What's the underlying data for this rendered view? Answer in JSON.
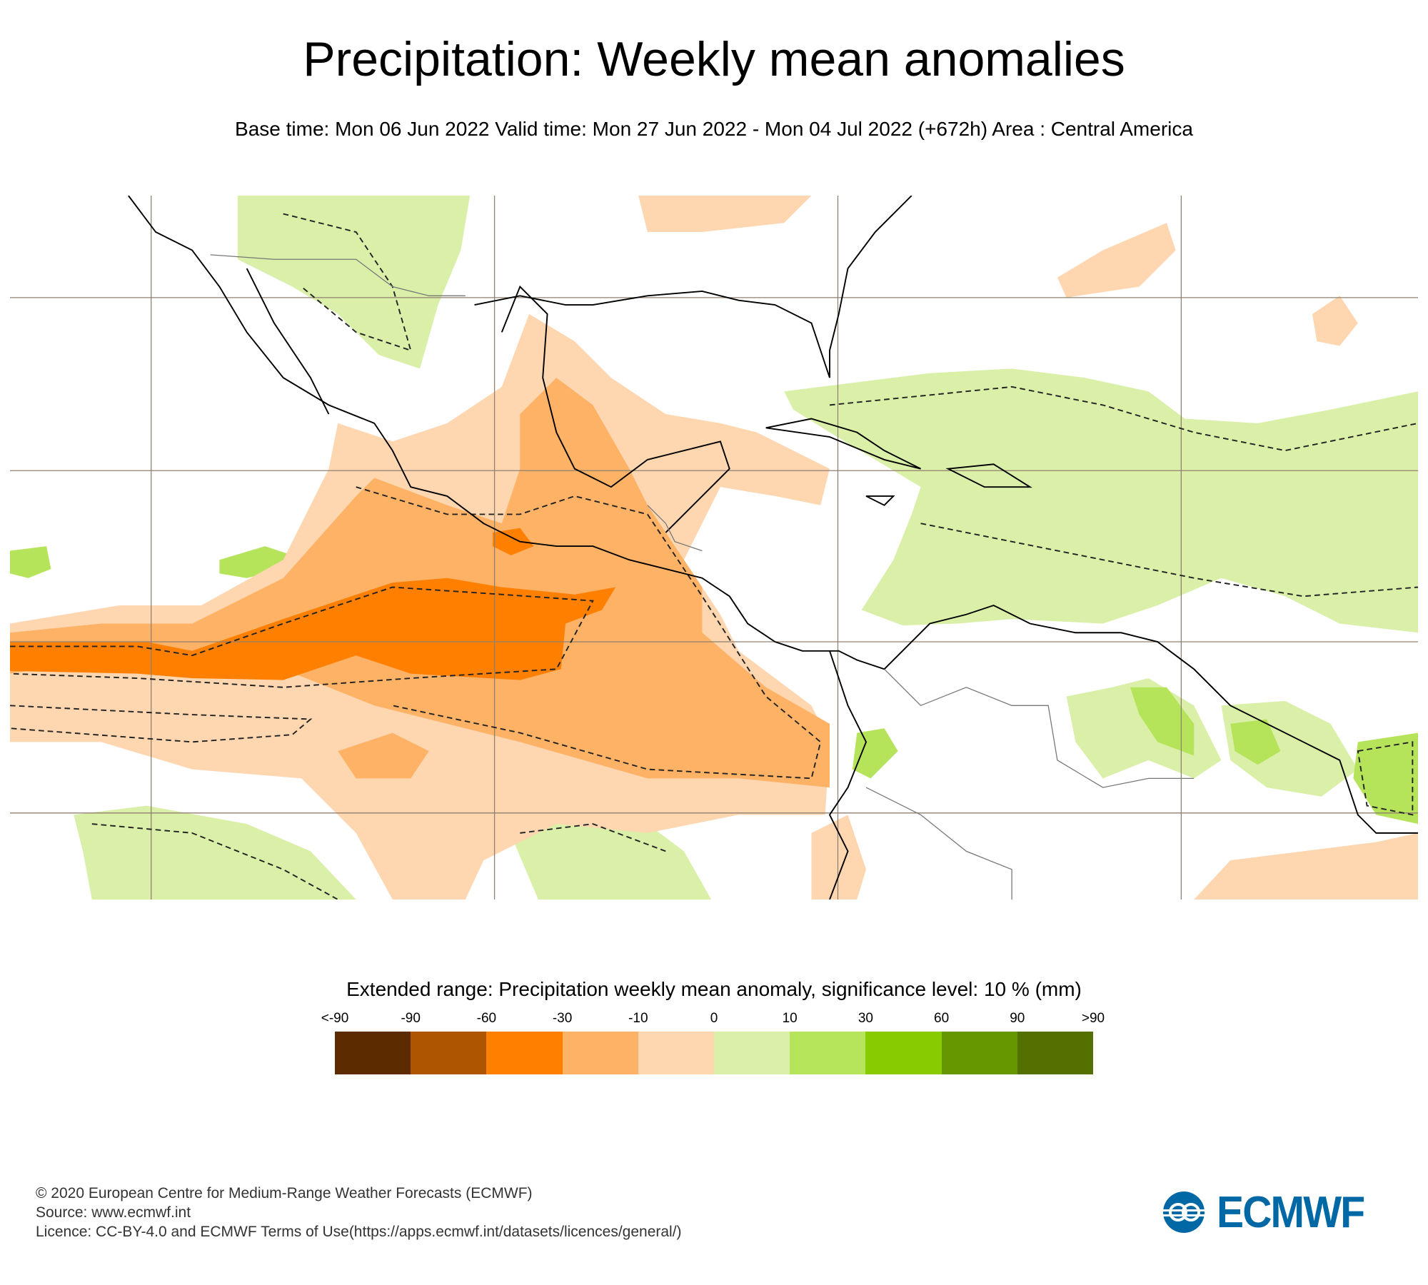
{
  "header": {
    "title": "Precipitation: Weekly mean anomalies",
    "subtitle": "Base time: Mon 06 Jun 2022 Valid time: Mon 27 Jun 2022 - Mon 04 Jul 2022 (+672h) Area : Central America"
  },
  "map": {
    "area": "Central America",
    "variable": "Precipitation weekly mean anomaly",
    "units": "mm",
    "fill_colors": {
      "strong_dry": "#ff7f00",
      "moderate_dry": "#feb266",
      "weak_dry": "#fed6b0",
      "weak_wet": "#daf0a8",
      "moderate_wet": "#b5e45a",
      "land_line": "#000000",
      "political_line": "#777777",
      "grid_line": "#8f8070"
    }
  },
  "colorbar": {
    "title": "Extended range: Precipitation weekly mean anomaly, significance level: 10 % (mm)",
    "labels": [
      "<-90",
      "-90",
      "-60",
      "-30",
      "-10",
      "0",
      "10",
      "30",
      "60",
      "90",
      ">90"
    ],
    "colors": [
      "#5c2b00",
      "#ad5500",
      "#ff7f00",
      "#feb266",
      "#fed6b0",
      "#daf0a8",
      "#b6e45a",
      "#87cb00",
      "#669700",
      "#547000"
    ]
  },
  "footer": {
    "line1": "© 2020 European Centre for Medium-Range Weather Forecasts (ECMWF)",
    "line2": "Source: www.ecmwf.int",
    "line3": "Licence: CC-BY-4.0 and ECMWF Terms of Use(https://apps.ecmwf.int/datasets/licences/general/)"
  },
  "logo": {
    "text": "ECMWF"
  }
}
